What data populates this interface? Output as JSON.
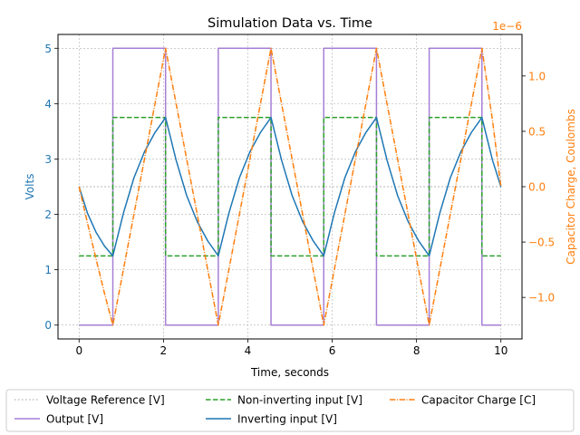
{
  "chart_data": {
    "type": "line",
    "title": "Simulation Data vs. Time",
    "xlabel": "Time, seconds",
    "ylabel": "Volts",
    "y2label": "Capacitor Charge, Coulombs",
    "y2_offset_label": "1e−6",
    "xlim": [
      -0.5,
      10.5
    ],
    "ylim": [
      -0.25,
      5.25
    ],
    "y2lim": [
      -1.375,
      1.375
    ],
    "x_ticks": [
      0,
      2,
      4,
      6,
      8,
      10
    ],
    "x_tick_labels": [
      "0",
      "2",
      "4",
      "6",
      "8",
      "10"
    ],
    "y_ticks": [
      0,
      1,
      2,
      3,
      4,
      5
    ],
    "y_tick_labels": [
      "0",
      "1",
      "2",
      "3",
      "4",
      "5"
    ],
    "y2_ticks": [
      -1.0,
      -0.5,
      0.0,
      0.5,
      1.0
    ],
    "y2_tick_labels": [
      "−1.0",
      "−0.5",
      "0.0",
      "0.5",
      "1.0"
    ],
    "y2_scale_note": "right axis values are ×1e−6",
    "grid": true,
    "legend_position": "bottom-outside",
    "colors": {
      "left_axis": "#1f77b4",
      "right_axis": "#ff7f0e",
      "grid": "#b0b0b0"
    },
    "series": [
      {
        "name": "Voltage Reference [V]",
        "axis": "left",
        "color": "#bfbfbf",
        "style": "dotted",
        "x": [
          0,
          10
        ],
        "values": [
          2.5,
          2.5
        ]
      },
      {
        "name": "Output [V]",
        "axis": "left",
        "color": "#a67fd6",
        "style": "solid",
        "x": [
          0,
          0.8,
          0.8,
          2.05,
          2.05,
          3.3,
          3.3,
          4.55,
          4.55,
          5.8,
          5.8,
          7.05,
          7.05,
          8.3,
          8.3,
          9.55,
          9.55,
          10
        ],
        "values": [
          0,
          0,
          5,
          5,
          0,
          0,
          5,
          5,
          0,
          0,
          5,
          5,
          0,
          0,
          5,
          5,
          0,
          0
        ]
      },
      {
        "name": "Non-inverting input [V]",
        "axis": "left",
        "color": "#2ca02c",
        "style": "dashed",
        "x": [
          0,
          0.8,
          0.8,
          2.05,
          2.05,
          3.3,
          3.3,
          4.55,
          4.55,
          5.8,
          5.8,
          7.05,
          7.05,
          8.3,
          8.3,
          9.55,
          9.55,
          10
        ],
        "values": [
          1.25,
          1.25,
          3.75,
          3.75,
          1.25,
          1.25,
          3.75,
          3.75,
          1.25,
          1.25,
          3.75,
          3.75,
          1.25,
          1.25,
          3.75,
          3.75,
          1.25,
          1.25
        ]
      },
      {
        "name": "Inverting input [V]",
        "axis": "left",
        "color": "#1f77b4",
        "style": "solid",
        "x": [
          0,
          0.2,
          0.4,
          0.6,
          0.8,
          1.05,
          1.3,
          1.55,
          1.8,
          2.05,
          2.3,
          2.55,
          2.8,
          3.05,
          3.3,
          3.55,
          3.8,
          4.05,
          4.3,
          4.55,
          4.8,
          5.05,
          5.3,
          5.55,
          5.8,
          6.05,
          6.3,
          6.55,
          6.8,
          7.05,
          7.3,
          7.55,
          7.8,
          8.05,
          8.3,
          8.55,
          8.8,
          9.05,
          9.3,
          9.55,
          9.8,
          10
        ],
        "values": [
          2.5,
          2.02,
          1.68,
          1.43,
          1.25,
          2.02,
          2.66,
          3.13,
          3.48,
          3.75,
          2.98,
          2.34,
          1.87,
          1.52,
          1.25,
          2.02,
          2.66,
          3.13,
          3.48,
          3.75,
          2.98,
          2.34,
          1.87,
          1.52,
          1.25,
          2.02,
          2.66,
          3.13,
          3.48,
          3.75,
          2.98,
          2.34,
          1.87,
          1.52,
          1.25,
          2.02,
          2.66,
          3.13,
          3.48,
          3.75,
          2.98,
          2.5
        ]
      },
      {
        "name": "Capacitor Charge [C]",
        "axis": "right",
        "color": "#ff7f0e",
        "style": "dashdot",
        "x": [
          0,
          0.2,
          0.4,
          0.6,
          0.8,
          1.05,
          1.3,
          1.55,
          1.8,
          2.05,
          2.3,
          2.55,
          2.8,
          3.05,
          3.3,
          3.55,
          3.8,
          4.05,
          4.3,
          4.55,
          4.8,
          5.05,
          5.3,
          5.55,
          5.8,
          6.05,
          6.3,
          6.55,
          6.8,
          7.05,
          7.3,
          7.55,
          7.8,
          8.05,
          8.3,
          8.55,
          8.8,
          9.05,
          9.3,
          9.55,
          9.8,
          10
        ],
        "values": [
          0.0,
          -0.33,
          -0.65,
          -0.96,
          -1.25,
          -0.75,
          -0.25,
          0.25,
          0.75,
          1.25,
          0.75,
          0.25,
          -0.25,
          -0.75,
          -1.25,
          -0.75,
          -0.25,
          0.25,
          0.75,
          1.25,
          0.75,
          0.25,
          -0.25,
          -0.75,
          -1.25,
          -0.75,
          -0.25,
          0.25,
          0.75,
          1.25,
          0.75,
          0.25,
          -0.25,
          -0.75,
          -1.25,
          -0.75,
          -0.25,
          0.25,
          0.75,
          1.25,
          0.6,
          0.0
        ]
      }
    ],
    "legend_order": [
      0,
      1,
      2,
      3,
      4
    ]
  }
}
